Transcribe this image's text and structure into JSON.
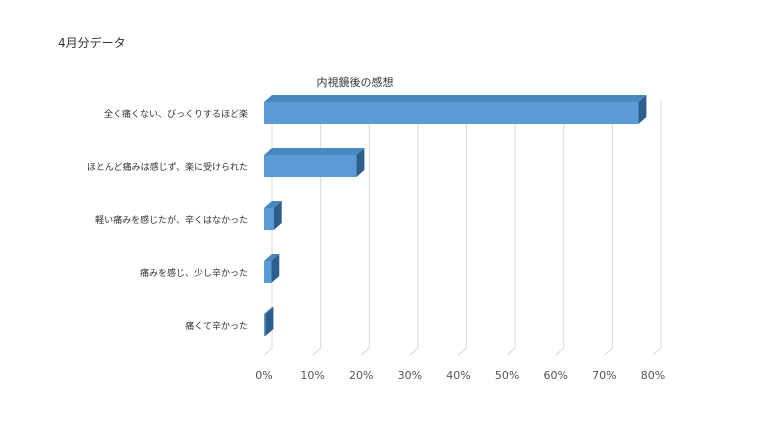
{
  "page": {
    "label": "4月分データ"
  },
  "chart_data": {
    "type": "bar",
    "orientation": "horizontal",
    "style": "3d",
    "title": "内視鏡後の感想",
    "categories": [
      "全く痛くない、びっくりするほど楽",
      "ほとんど痛みは感じず、楽に受けられた",
      "軽い痛みを感じたが、辛くはなかった",
      "痛みを感じ、少し辛かった",
      "痛くて辛かった"
    ],
    "values": [
      0.77,
      0.19,
      0.02,
      0.015,
      0.003
    ],
    "xlim": [
      0,
      0.8
    ],
    "xticks": [
      "0%",
      "10%",
      "20%",
      "30%",
      "40%",
      "50%",
      "60%",
      "70%",
      "80%"
    ],
    "grid": true,
    "legend": "none",
    "colors": {
      "bar_front": "#5b9bd5",
      "bar_top": "#4a86bf",
      "bar_side": "#2e5f8c",
      "grid": "#d9d9d9"
    }
  }
}
